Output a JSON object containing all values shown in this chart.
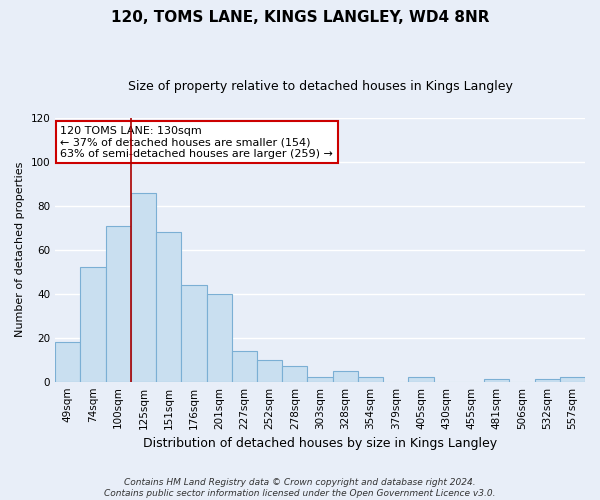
{
  "title": "120, TOMS LANE, KINGS LANGLEY, WD4 8NR",
  "subtitle": "Size of property relative to detached houses in Kings Langley",
  "xlabel": "Distribution of detached houses by size in Kings Langley",
  "ylabel": "Number of detached properties",
  "categories": [
    "49sqm",
    "74sqm",
    "100sqm",
    "125sqm",
    "151sqm",
    "176sqm",
    "201sqm",
    "227sqm",
    "252sqm",
    "278sqm",
    "303sqm",
    "328sqm",
    "354sqm",
    "379sqm",
    "405sqm",
    "430sqm",
    "455sqm",
    "481sqm",
    "506sqm",
    "532sqm",
    "557sqm"
  ],
  "values": [
    18,
    52,
    71,
    86,
    68,
    44,
    40,
    14,
    10,
    7,
    2,
    5,
    2,
    0,
    2,
    0,
    0,
    1,
    0,
    1,
    2
  ],
  "bar_color": "#c9dff0",
  "bar_edge_color": "#7bafd4",
  "vline_x_index": 3,
  "vline_color": "#aa0000",
  "annotation_lines": [
    "120 TOMS LANE: 130sqm",
    "← 37% of detached houses are smaller (154)",
    "63% of semi-detached houses are larger (259) →"
  ],
  "annotation_box_color": "#ffffff",
  "annotation_box_edge_color": "#cc0000",
  "ylim": [
    0,
    120
  ],
  "yticks": [
    0,
    20,
    40,
    60,
    80,
    100,
    120
  ],
  "background_color": "#e8eef8",
  "grid_color": "#ffffff",
  "footer_line1": "Contains HM Land Registry data © Crown copyright and database right 2024.",
  "footer_line2": "Contains public sector information licensed under the Open Government Licence v3.0.",
  "title_fontsize": 11,
  "subtitle_fontsize": 9,
  "xlabel_fontsize": 9,
  "ylabel_fontsize": 8,
  "tick_fontsize": 7.5,
  "annotation_fontsize": 8,
  "footer_fontsize": 6.5
}
